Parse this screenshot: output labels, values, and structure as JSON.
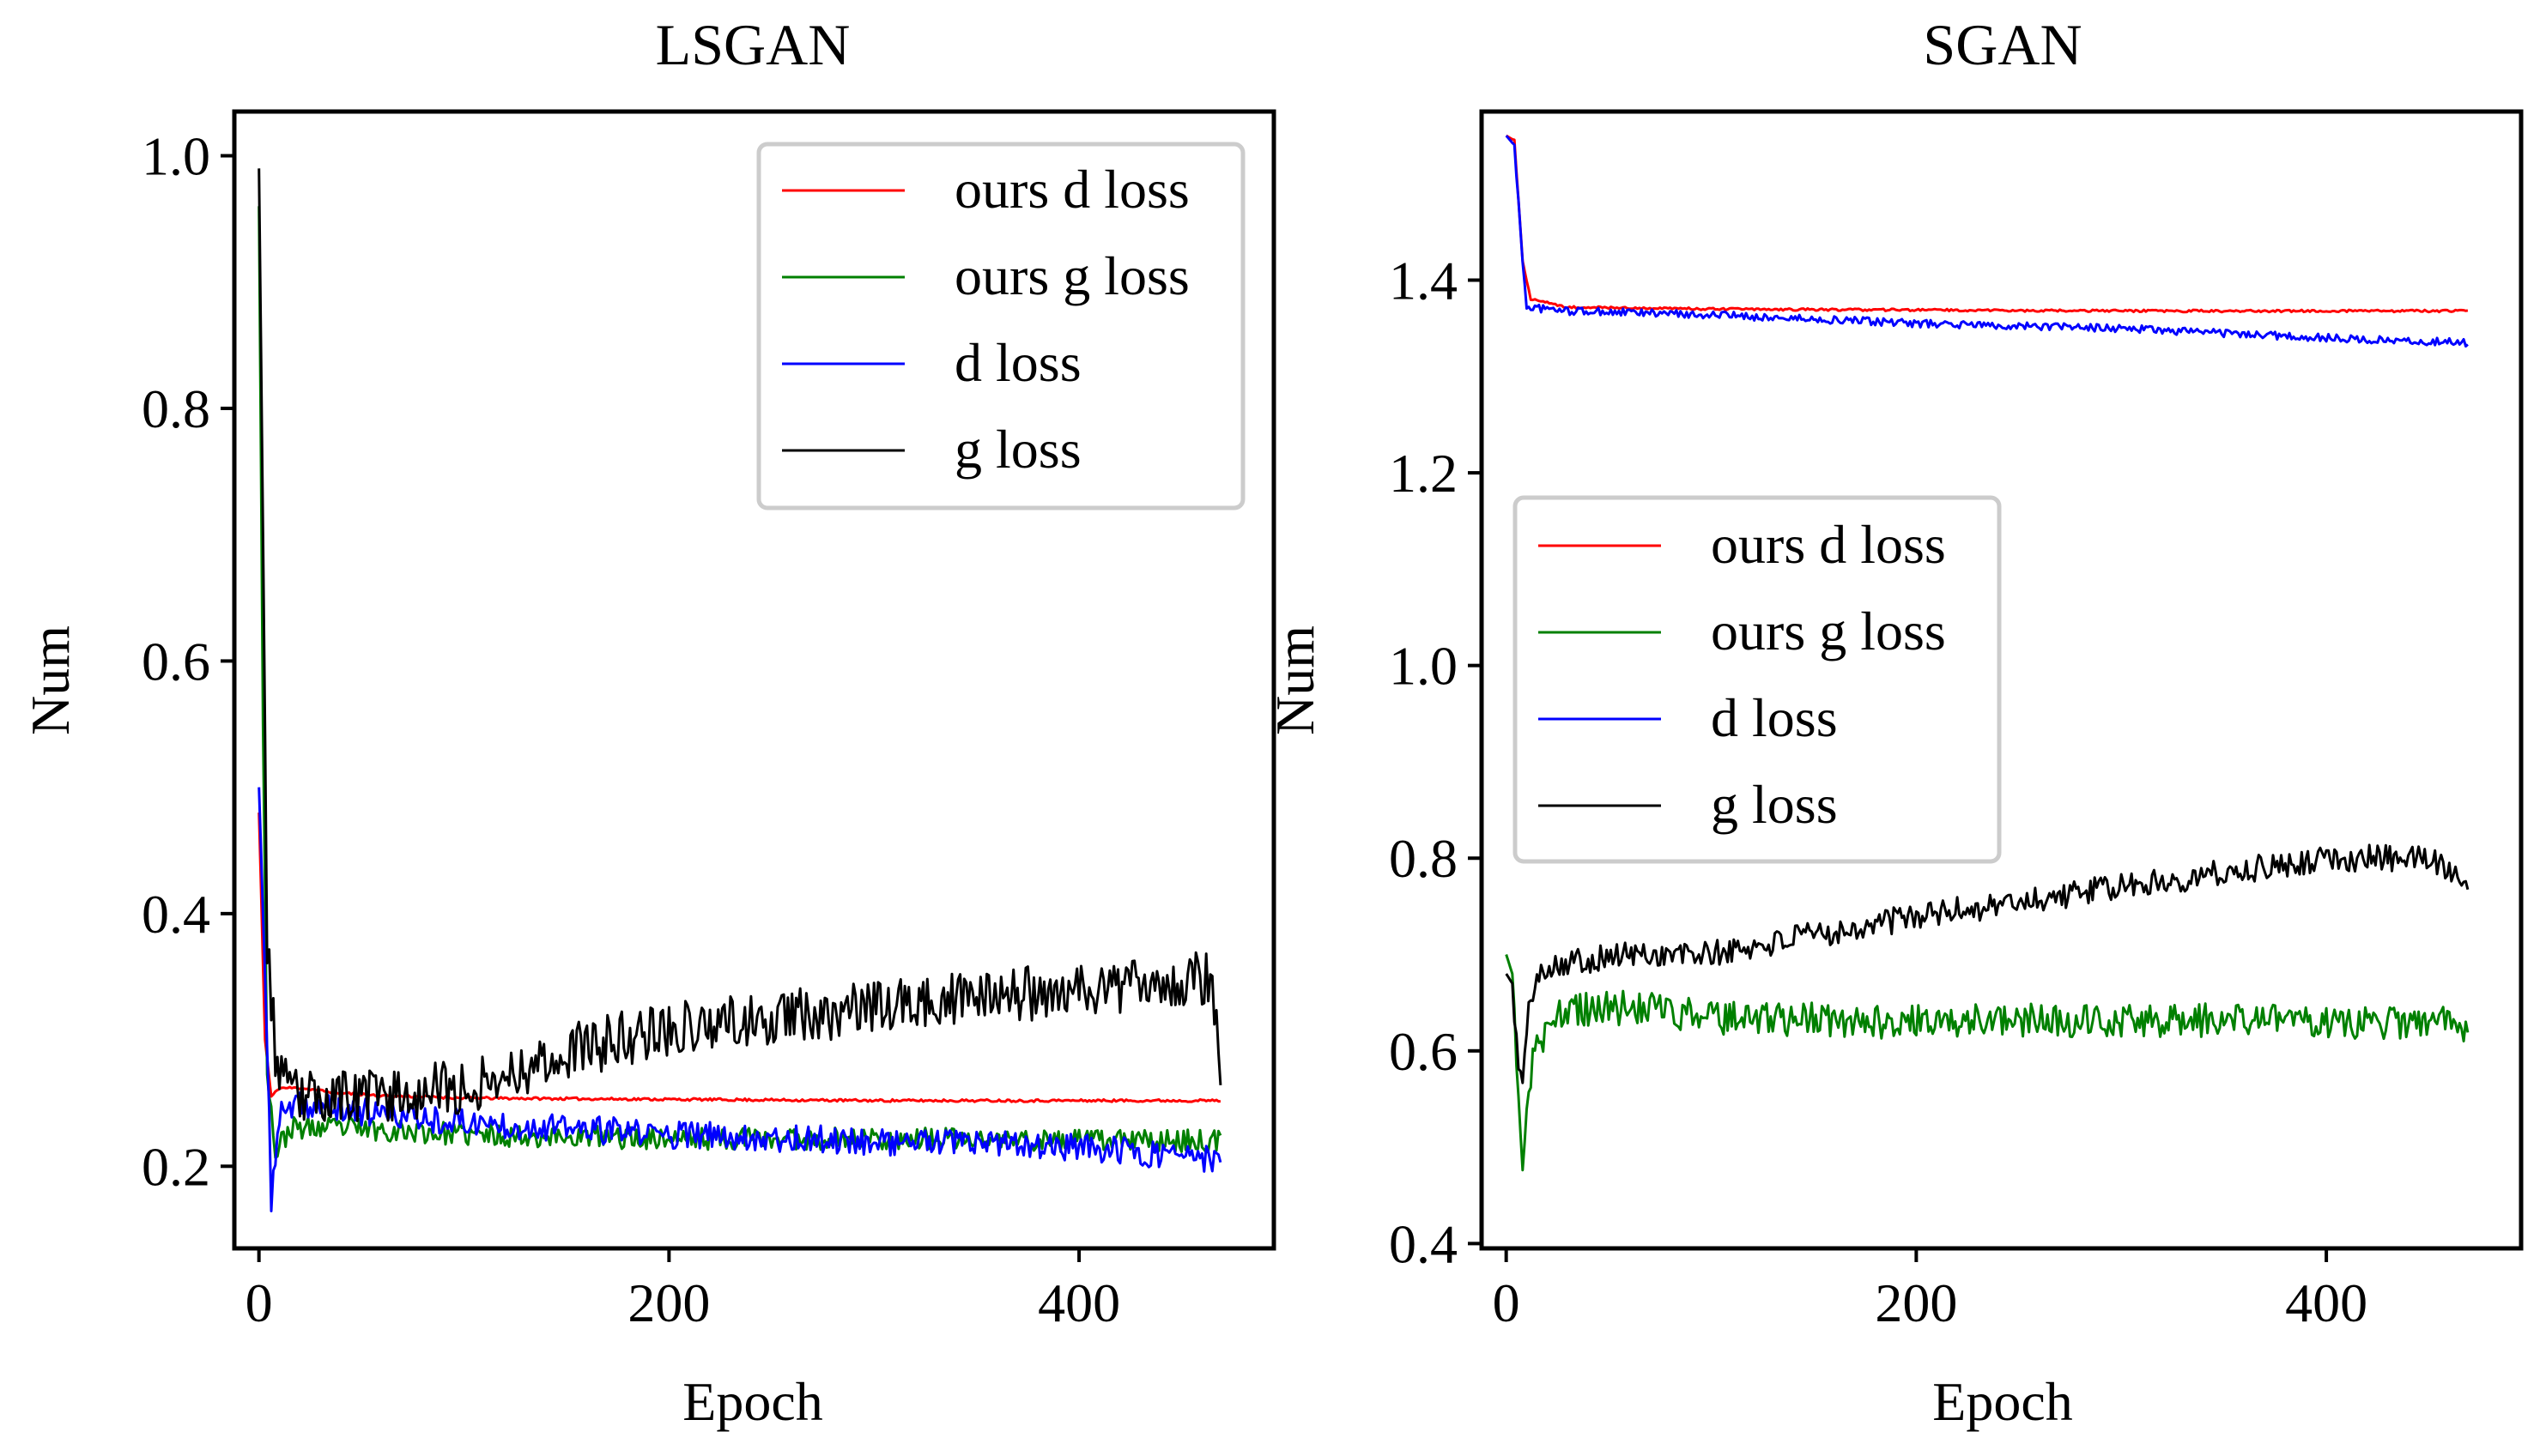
{
  "chart_data": [
    {
      "type": "line",
      "title": "LSGAN",
      "xlabel": "Epoch",
      "ylabel": "Num",
      "xlim": [
        -12,
        495
      ],
      "ylim": [
        0.135,
        1.035
      ],
      "xticks": [
        0,
        200,
        400
      ],
      "xtick_labels": [
        "0",
        "200",
        "400"
      ],
      "yticks": [
        0.2,
        0.4,
        0.6,
        0.8,
        1.0
      ],
      "ytick_labels": [
        "0.2",
        "0.4",
        "0.6",
        "0.8",
        "1.0"
      ],
      "grid": false,
      "legend_position": "upper right",
      "n_points": 470,
      "series": [
        {
          "name": "ours d loss",
          "color": "#ff0000",
          "points": [
            [
              0,
              0.48
            ],
            [
              3,
              0.3
            ],
            [
              6,
              0.255
            ],
            [
              10,
              0.262
            ],
            [
              20,
              0.262
            ],
            [
              40,
              0.258
            ],
            [
              60,
              0.256
            ],
            [
              100,
              0.254
            ],
            [
              200,
              0.253
            ],
            [
              300,
              0.252
            ],
            [
              400,
              0.252
            ],
            [
              470,
              0.252
            ]
          ],
          "noise": 0.001,
          "seed": 11
        },
        {
          "name": "ours g loss",
          "color": "#008000",
          "points": [
            [
              0,
              0.96
            ],
            [
              2,
              0.55
            ],
            [
              4,
              0.28
            ],
            [
              8,
              0.21
            ],
            [
              15,
              0.23
            ],
            [
              50,
              0.23
            ],
            [
              100,
              0.225
            ],
            [
              200,
              0.222
            ],
            [
              300,
              0.222
            ],
            [
              400,
              0.22
            ],
            [
              470,
              0.22
            ]
          ],
          "noise": 0.009,
          "seed": 23
        },
        {
          "name": "d loss",
          "color": "#0000ff",
          "points": [
            [
              0,
              0.5
            ],
            [
              3,
              0.35
            ],
            [
              6,
              0.175
            ],
            [
              10,
              0.24
            ],
            [
              20,
              0.248
            ],
            [
              50,
              0.243
            ],
            [
              100,
              0.235
            ],
            [
              200,
              0.225
            ],
            [
              300,
              0.22
            ],
            [
              400,
              0.215
            ],
            [
              470,
              0.205
            ]
          ],
          "noise": 0.011,
          "seed": 37
        },
        {
          "name": "g loss",
          "color": "#000000",
          "points": [
            [
              0,
              0.99
            ],
            [
              2,
              0.7
            ],
            [
              4,
              0.38
            ],
            [
              8,
              0.29
            ],
            [
              15,
              0.255
            ],
            [
              50,
              0.255
            ],
            [
              100,
              0.262
            ],
            [
              150,
              0.29
            ],
            [
              200,
              0.31
            ],
            [
              300,
              0.325
            ],
            [
              400,
              0.34
            ],
            [
              465,
              0.35
            ],
            [
              470,
              0.27
            ]
          ],
          "noise": 0.022,
          "seed": 53
        }
      ]
    },
    {
      "type": "line",
      "title": "SGAN",
      "xlabel": "Epoch",
      "ylabel": "Num",
      "xlim": [
        -12,
        495
      ],
      "ylim": [
        0.395,
        1.575
      ],
      "xticks": [
        0,
        200,
        400
      ],
      "xtick_labels": [
        "0",
        "200",
        "400"
      ],
      "yticks": [
        0.4,
        0.6,
        0.8,
        1.0,
        1.2,
        1.4
      ],
      "ytick_labels": [
        "0.4",
        "0.6",
        "0.8",
        "1.0",
        "1.2",
        "1.4"
      ],
      "grid": false,
      "legend_position": "center left",
      "n_points": 470,
      "series": [
        {
          "name": "ours d loss",
          "color": "#ff0000",
          "points": [
            [
              0,
              1.55
            ],
            [
              4,
              1.545
            ],
            [
              8,
              1.42
            ],
            [
              12,
              1.38
            ],
            [
              30,
              1.372
            ],
            [
              100,
              1.37
            ],
            [
              200,
              1.369
            ],
            [
              300,
              1.368
            ],
            [
              400,
              1.368
            ],
            [
              470,
              1.368
            ]
          ],
          "noise": 0.0012,
          "seed": 71
        },
        {
          "name": "ours g loss",
          "color": "#008000",
          "points": [
            [
              0,
              0.7
            ],
            [
              3,
              0.68
            ],
            [
              6,
              0.55
            ],
            [
              8,
              0.47
            ],
            [
              10,
              0.55
            ],
            [
              14,
              0.6
            ],
            [
              25,
              0.64
            ],
            [
              60,
              0.645
            ],
            [
              100,
              0.635
            ],
            [
              200,
              0.63
            ],
            [
              300,
              0.632
            ],
            [
              400,
              0.63
            ],
            [
              470,
              0.628
            ]
          ],
          "noise": 0.018,
          "seed": 83
        },
        {
          "name": "d loss",
          "color": "#0000ff",
          "points": [
            [
              0,
              1.55
            ],
            [
              4,
              1.54
            ],
            [
              8,
              1.42
            ],
            [
              10,
              1.372
            ],
            [
              30,
              1.368
            ],
            [
              100,
              1.364
            ],
            [
              200,
              1.355
            ],
            [
              300,
              1.35
            ],
            [
              400,
              1.34
            ],
            [
              470,
              1.335
            ]
          ],
          "noise": 0.004,
          "seed": 97
        },
        {
          "name": "g loss",
          "color": "#000000",
          "points": [
            [
              0,
              0.68
            ],
            [
              3,
              0.67
            ],
            [
              6,
              0.58
            ],
            [
              8,
              0.57
            ],
            [
              12,
              0.66
            ],
            [
              20,
              0.69
            ],
            [
              60,
              0.7
            ],
            [
              100,
              0.7
            ],
            [
              150,
              0.72
            ],
            [
              200,
              0.74
            ],
            [
              250,
              0.755
            ],
            [
              300,
              0.77
            ],
            [
              350,
              0.785
            ],
            [
              400,
              0.8
            ],
            [
              450,
              0.8
            ],
            [
              470,
              0.78
            ]
          ],
          "noise": 0.014,
          "seed": 101
        }
      ]
    }
  ]
}
